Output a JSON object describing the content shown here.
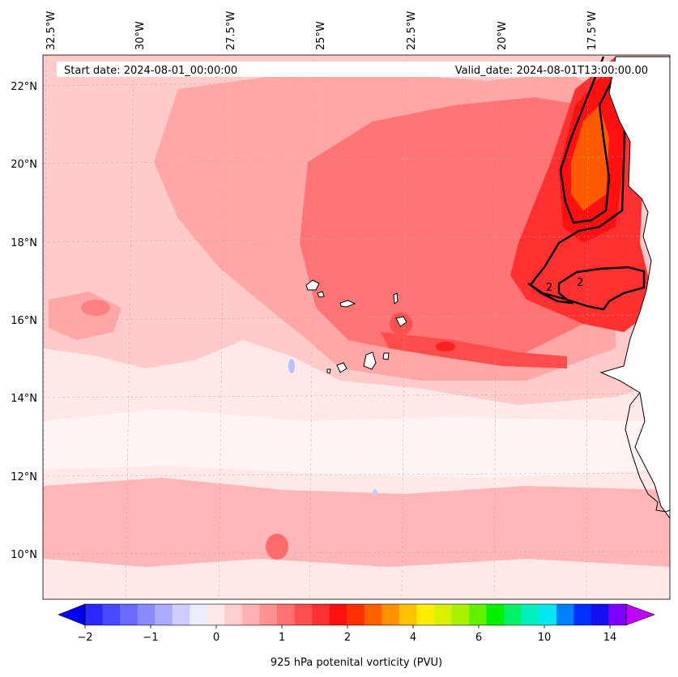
{
  "header": {
    "start_date": "Start date: 2024-08-01_00:00:00",
    "valid_date": "Valid_date: 2024-08-01T13:00:00.00"
  },
  "map": {
    "lon_labels": [
      "32.5°W",
      "30°W",
      "27.5°W",
      "25°W",
      "22.5°W",
      "20°W",
      "17.5°W"
    ],
    "lat_labels": [
      "22°N",
      "20°N",
      "18°N",
      "16°N",
      "14°N",
      "12°N",
      "10°N"
    ],
    "contour_labels": [
      "2",
      "2"
    ],
    "colors": {
      "background": "#ffe8e8",
      "light_red": "#ffbcbc",
      "mid_red": "#ff8f8f",
      "strong_red": "#ff4a4a",
      "deep_red": "#ff1414",
      "orange": "#ff5a00",
      "blue_spot": "#b8c0ff",
      "coast": "#000000"
    }
  },
  "colorbar": {
    "tick_labels": [
      "−2",
      "−1",
      "0",
      "1",
      "2",
      "4",
      "6",
      "10",
      "14"
    ],
    "label": "925 hPa potenital vorticity (PVU)",
    "colors": [
      "#0000ff",
      "#2a2aff",
      "#4848ff",
      "#6a6aff",
      "#8a8aff",
      "#aaaaff",
      "#cdcdff",
      "#ececff",
      "#ffe8e8",
      "#ffcdcd",
      "#ffb0b0",
      "#ff9090",
      "#ff7070",
      "#ff5050",
      "#ff3030",
      "#ff1010",
      "#ff3000",
      "#ff6000",
      "#ff9000",
      "#ffc000",
      "#ffee00",
      "#d8f000",
      "#a8f000",
      "#60f000",
      "#00f000",
      "#00f068",
      "#00f0c0",
      "#00e8f0",
      "#0080ff",
      "#0030ff",
      "#1010f0",
      "#8000ff",
      "#c000ff"
    ]
  }
}
